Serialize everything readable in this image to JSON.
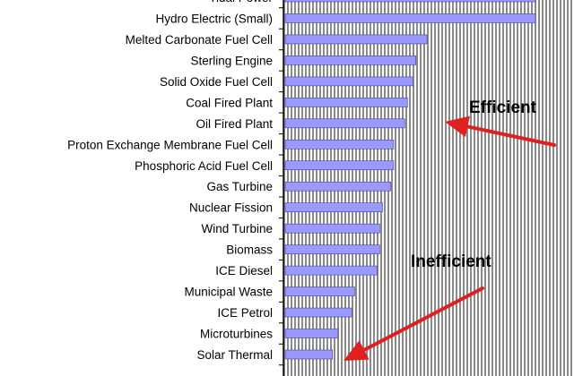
{
  "chart_data": {
    "type": "bar",
    "orientation": "horizontal",
    "categories": [
      "Tidal Power",
      "Hydro Electric (Small)",
      "Melted Carbonate Fuel Cell",
      "Sterling Engine",
      "Solid Oxide Fuel Cell",
      "Coal Fired Plant",
      "Oil Fired Plant",
      "Proton Exchange Membrane Fuel Cell",
      "Phosphoric Acid Fuel Cell",
      "Gas Turbine",
      "Nuclear Fission",
      "Wind Turbine",
      "Biomass",
      "ICE Diesel",
      "Municipal Waste",
      "ICE Petrol",
      "Microturbines",
      "Solar Thermal"
    ],
    "values": [
      90,
      90,
      51,
      47,
      46,
      44,
      43,
      39,
      39,
      38,
      35,
      34,
      34,
      33,
      25,
      24,
      19,
      17
    ],
    "value_axis_range": [
      0,
      90
    ],
    "grid": "vertical",
    "bar_color": "#9999ff",
    "plot_background": "#c0c0c0",
    "annotations": [
      {
        "text": "Efficient",
        "arrow_color": "#e02020"
      },
      {
        "text": "Inefficient",
        "arrow_color": "#e02020"
      }
    ]
  }
}
